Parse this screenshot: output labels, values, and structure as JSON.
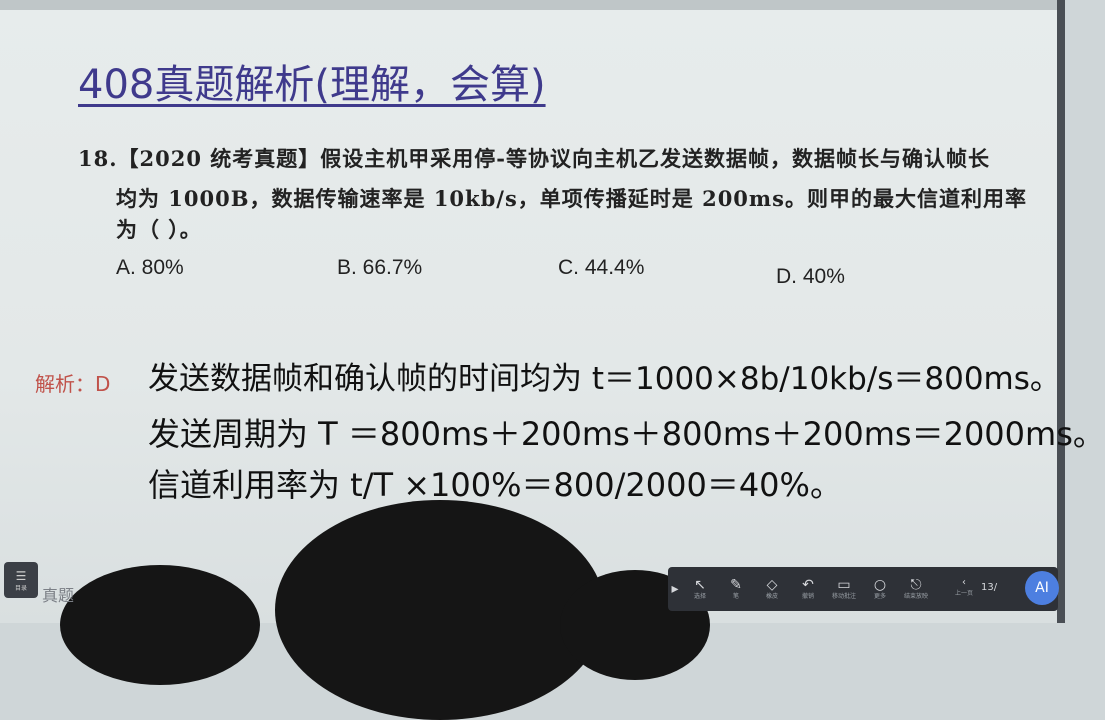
{
  "slide": {
    "title": "408真题解析(理解，会算)",
    "question": {
      "line1": "18.【2020 统考真题】假设主机甲采用停-等协议向主机乙发送数据帧，数据帧长与确认帧长",
      "line2": "均为 1000B，数据传输速率是 10kb/s，单项传播延时是 200ms。则甲的最大信道利用率",
      "line3": "为（ ）。",
      "options": [
        "A.  80%",
        "B.  66.7%",
        "C.  44.4%",
        "D.  40%"
      ]
    },
    "answer_label": "解析：D",
    "solution": {
      "line1": "发送数据帧和确认帧的时间均为 t＝1000×8b/10kb/s＝800ms。",
      "line2": "发送周期为 T ＝800ms＋200ms＋800ms＋200ms＝2000ms。",
      "line3": "信道利用率为 t/T ×100%＝800/2000＝40%。"
    }
  },
  "toolbar": {
    "left_button_label": "目录",
    "left_text": "真题",
    "tools": [
      {
        "icon": "pointer-icon",
        "label": "选择"
      },
      {
        "icon": "pen-icon",
        "label": "笔"
      },
      {
        "icon": "eraser-icon",
        "label": "橡皮"
      },
      {
        "icon": "undo-icon",
        "label": "撤销"
      },
      {
        "icon": "window-icon",
        "label": "移动批注"
      },
      {
        "icon": "circle-icon",
        "label": "更多"
      },
      {
        "icon": "exit-icon",
        "label": "结束放映"
      }
    ],
    "prev_label": "上一页",
    "page_indicator": "13/",
    "fab_label": "AI"
  },
  "colors": {
    "title": "#3f3a8c",
    "answer": "#c0524a",
    "toolbar": "#2e3137",
    "fab": "#4d7fe0"
  }
}
